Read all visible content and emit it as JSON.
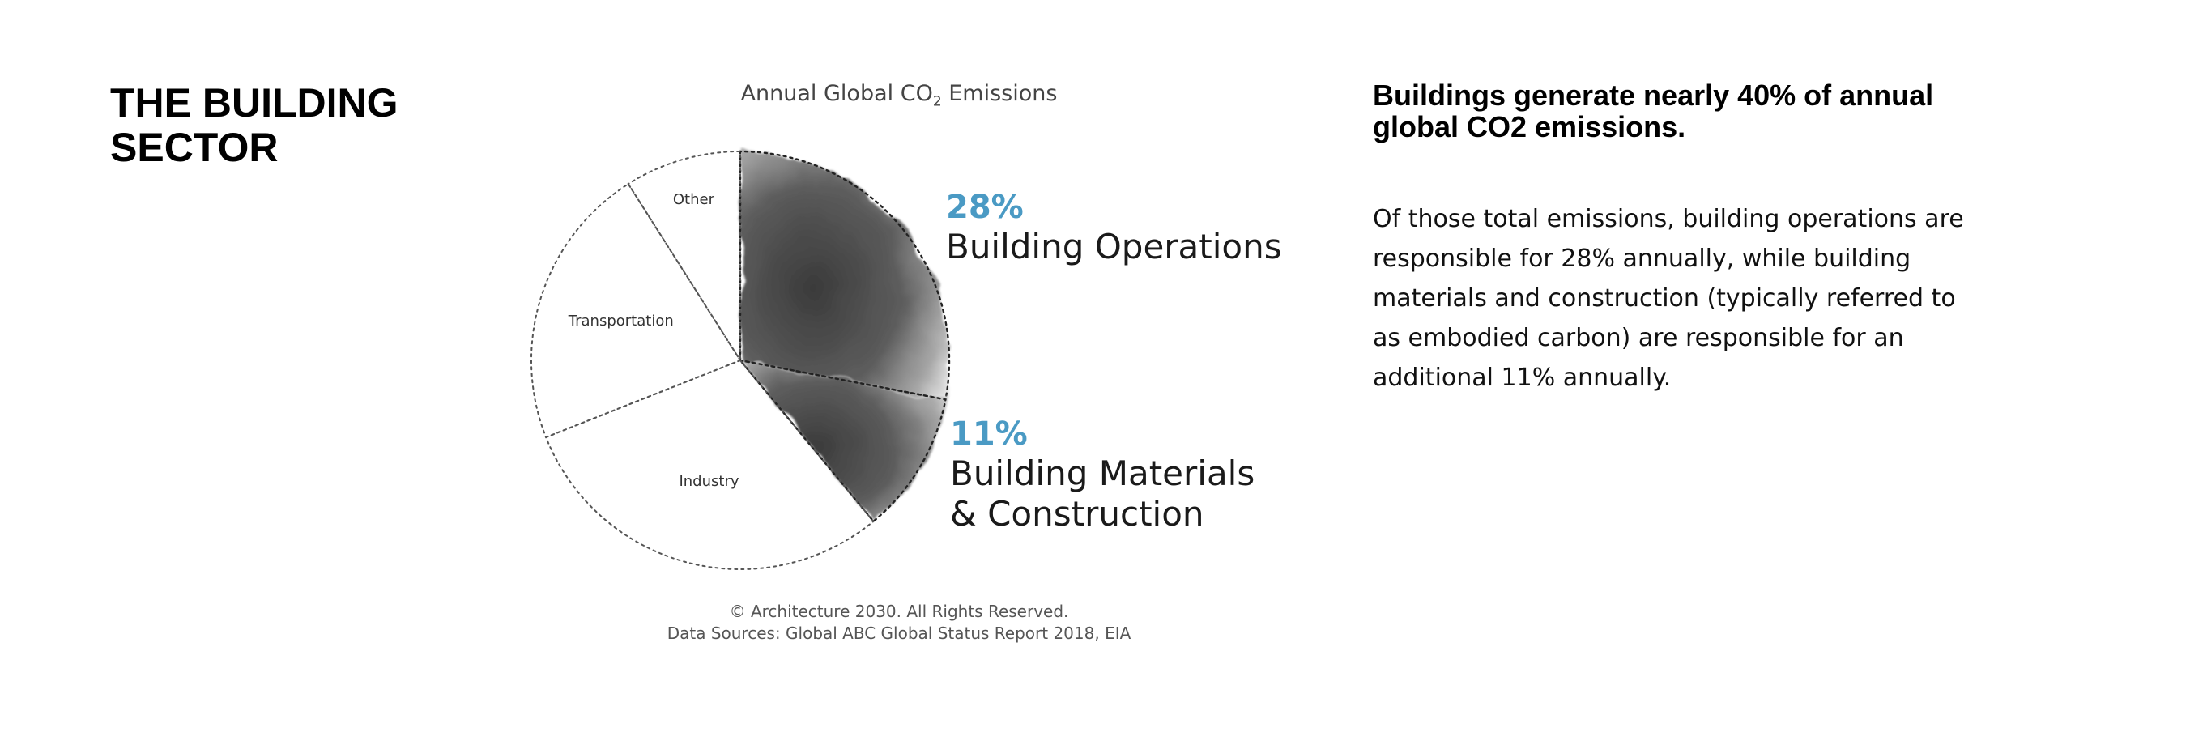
{
  "page": {
    "title": "THE BUILDING SECTOR"
  },
  "chart_data": {
    "type": "pie",
    "title_main": "Annual Global CO",
    "title_sub": "2",
    "title_end": " Emissions",
    "slices": [
      {
        "label": "Building Operations",
        "value": 28,
        "value_label": "28%",
        "highlight": true
      },
      {
        "label": "Building Materials\n& Construction",
        "value": 11,
        "value_label": "11%",
        "highlight": true
      },
      {
        "label": "Industry",
        "value": 30,
        "highlight": false
      },
      {
        "label": "Transportation",
        "value": 22,
        "highlight": false
      },
      {
        "label": "Other",
        "value": 9,
        "highlight": false
      }
    ],
    "start_position": "top",
    "direction": "clockwise",
    "footer_lines": [
      "© Architecture 2030. All Rights Reserved.",
      "Data Sources: Global ABC Global Status Report 2018, EIA"
    ],
    "colors": {
      "highlight_fill": "#4a4a4a",
      "callout_percent": "#4a9ac4",
      "outline": "#555555"
    }
  },
  "right": {
    "headline": "Buildings generate nearly 40% of annual global CO2 emissions.",
    "body": "Of those total emissions, building operations are responsible for 28% annually, while building materials and construction (typically referred to as embodied carbon) are responsible for an additional 11% annually."
  }
}
